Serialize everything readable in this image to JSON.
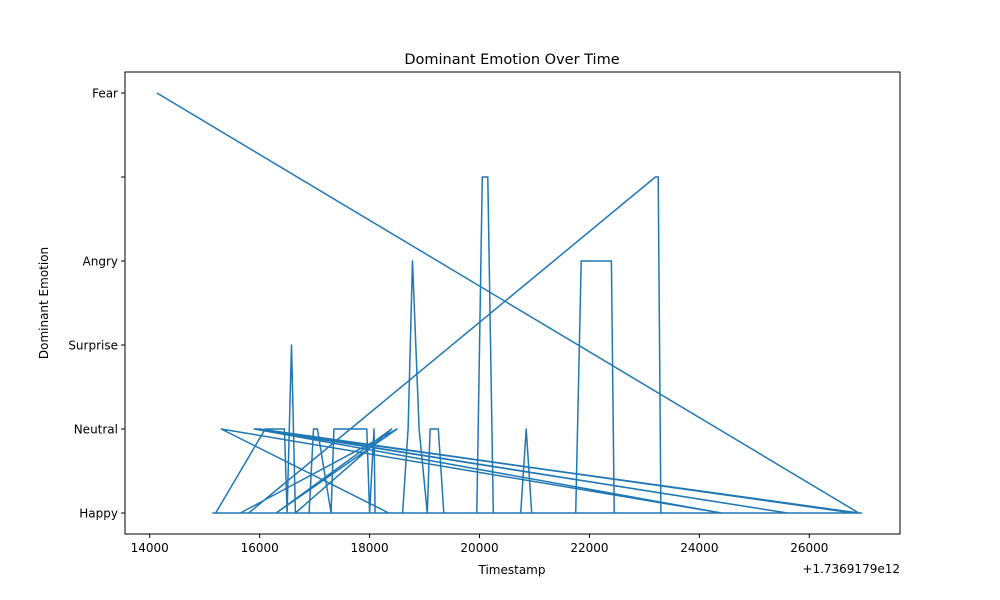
{
  "chart_data": {
    "type": "line",
    "title": "Dominant Emotion Over Time",
    "xlabel": "Timestamp",
    "ylabel": "Dominant Emotion",
    "x_offset_label": "+1.7369179e12",
    "x_ticks": [
      "14000",
      "16000",
      "18000",
      "20000",
      "22000",
      "24000",
      "26000"
    ],
    "x_tick_values": [
      14000,
      16000,
      18000,
      20000,
      22000,
      24000,
      26000
    ],
    "y_ticks": [
      "Happy",
      "Neutral",
      "Surprise",
      "Angry",
      "",
      "Fear"
    ],
    "xlim": [
      13550,
      27650
    ],
    "ylim": [
      -0.25,
      5.25
    ],
    "grid": false,
    "line_color": "#1f77b4",
    "series": [
      {
        "x": [
          14130,
          26900,
          26950,
          15150,
          15200,
          16100,
          16200,
          16450,
          16500,
          16580,
          16650,
          16700,
          16900,
          16980,
          17050,
          17300,
          17350,
          17950,
          18000,
          18080,
          18100,
          18250,
          18350,
          18600,
          18700,
          18780,
          18900,
          19050,
          19100,
          19250,
          19350,
          19950,
          20050,
          20150,
          20250,
          20750,
          20850,
          20950,
          21050,
          21750,
          21850,
          22300,
          22400,
          22450,
          15700,
          15800,
          23200,
          23250,
          23300,
          26900,
          15900,
          16000,
          26800,
          15950,
          25600,
          15900,
          24400,
          15300,
          18350,
          15650,
          18500,
          16300,
          18400,
          16650,
          22900
        ],
        "y": [
          5,
          0,
          0,
          0,
          0,
          1,
          1,
          1,
          0,
          2,
          0,
          0,
          0,
          1,
          1,
          0,
          1,
          1,
          0,
          1,
          0,
          0,
          0,
          0,
          1,
          3,
          1,
          0,
          1,
          1,
          0,
          0,
          4,
          4,
          0,
          0,
          1,
          0,
          0,
          0,
          3,
          3,
          3,
          0,
          0,
          0,
          4,
          4,
          0,
          0,
          1,
          1,
          0,
          1,
          0,
          1,
          0,
          1,
          0,
          0,
          1,
          0,
          1,
          0,
          0
        ]
      }
    ]
  }
}
